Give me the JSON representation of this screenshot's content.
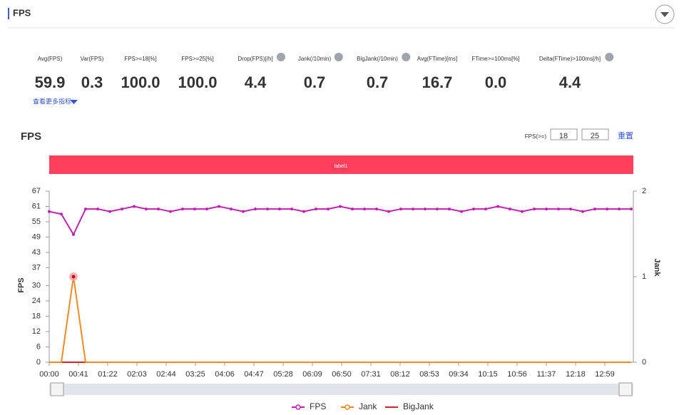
{
  "header": {
    "title": "FPS"
  },
  "metrics": [
    {
      "label": "Avg(FPS)",
      "value": "59.9"
    },
    {
      "label": "Var(FPS)",
      "value": "0.3"
    },
    {
      "label": "FPS>=18[%]",
      "value": "100.0"
    },
    {
      "label": "FPS>=25[%]",
      "value": "100.0"
    },
    {
      "label": "Drop(FPS)[/h]",
      "value": "4.4"
    },
    {
      "label": "Jank(/10min)",
      "value": "0.7"
    },
    {
      "label": "BigJank(/10min)",
      "value": "0.7"
    },
    {
      "label": "Avg(FTime)[ms]",
      "value": "16.7"
    },
    {
      "label": "FTime>=100ms[%]",
      "value": "0.0"
    },
    {
      "label": "Delta(FTime)>100ms[/h]",
      "value": "4.4"
    }
  ],
  "more_link": "查看更多指标",
  "controls": {
    "threshold_label": "FPS(>=)",
    "threshold_values": [
      "18",
      "25"
    ],
    "reset": "重置"
  },
  "chart_data": {
    "type": "line",
    "title": "FPS",
    "band_label": "label1",
    "ylabel": "FPS",
    "y2label": "Jank",
    "x": [
      0,
      17,
      34,
      51,
      68,
      85,
      102,
      119,
      136,
      153,
      170,
      187,
      204,
      221,
      238,
      255,
      272,
      289,
      306,
      323,
      340,
      357,
      374,
      391,
      408,
      425,
      442,
      459,
      476,
      493,
      510,
      527,
      544,
      561,
      578,
      595,
      612,
      629,
      646,
      663,
      680,
      697,
      714,
      731,
      748,
      765,
      782,
      799,
      816
    ],
    "xlim": [
      0,
      819
    ],
    "xticks": [
      {
        "value": 0,
        "label": "00:00"
      },
      {
        "value": 41,
        "label": "00:41"
      },
      {
        "value": 82,
        "label": "01:22"
      },
      {
        "value": 123,
        "label": "02:03"
      },
      {
        "value": 164,
        "label": "02:44"
      },
      {
        "value": 205,
        "label": "03:25"
      },
      {
        "value": 246,
        "label": "04:06"
      },
      {
        "value": 287,
        "label": "04:47"
      },
      {
        "value": 328,
        "label": "05:28"
      },
      {
        "value": 369,
        "label": "06:09"
      },
      {
        "value": 410,
        "label": "06:50"
      },
      {
        "value": 451,
        "label": "07:31"
      },
      {
        "value": 492,
        "label": "08:12"
      },
      {
        "value": 533,
        "label": "08:53"
      },
      {
        "value": 574,
        "label": "09:34"
      },
      {
        "value": 615,
        "label": "10:15"
      },
      {
        "value": 656,
        "label": "10:56"
      },
      {
        "value": 697,
        "label": "11:37"
      },
      {
        "value": 738,
        "label": "12:18"
      },
      {
        "value": 779,
        "label": "12:59"
      }
    ],
    "ylim": [
      0,
      67
    ],
    "yticks": [
      0,
      6,
      12,
      18,
      24,
      30,
      37,
      43,
      49,
      55,
      61,
      67
    ],
    "y2lim": [
      0,
      2
    ],
    "y2ticks": [
      0,
      1,
      2
    ],
    "series": [
      {
        "name": "FPS",
        "color": "#c41fb4",
        "values": [
          59,
          58,
          50,
          60,
          60,
          59,
          60,
          61,
          60,
          60,
          59,
          60,
          60,
          60,
          61,
          60,
          59,
          60,
          60,
          60,
          60,
          59,
          60,
          60,
          61,
          60,
          60,
          60,
          59,
          60,
          60,
          60,
          60,
          60,
          59,
          60,
          60,
          61,
          60,
          59,
          60,
          60,
          60,
          60,
          59,
          60,
          60,
          60,
          60
        ]
      },
      {
        "name": "Jank",
        "color": "#f08a24",
        "axis": "y2",
        "values": [
          0,
          0,
          1,
          0,
          0,
          0,
          0,
          0,
          0,
          0,
          0,
          0,
          0,
          0,
          0,
          0,
          0,
          0,
          0,
          0,
          0,
          0,
          0,
          0,
          0,
          0,
          0,
          0,
          0,
          0,
          0,
          0,
          0,
          0,
          0,
          0,
          0,
          0,
          0,
          0,
          0,
          0,
          0,
          0,
          0,
          0,
          0,
          0,
          0
        ]
      },
      {
        "name": "BigJank",
        "color": "#d9202c",
        "axis": "y2",
        "values": [
          0,
          0,
          0,
          0,
          0,
          0,
          0,
          0,
          0,
          0,
          0,
          0,
          0,
          0,
          0,
          0,
          0,
          0,
          0,
          0,
          0,
          0,
          0,
          0,
          0,
          0,
          0,
          0,
          0,
          0,
          0,
          0,
          0,
          0,
          0,
          0,
          0,
          0,
          0,
          0,
          0,
          0,
          0,
          0,
          0,
          0,
          0,
          0,
          0
        ]
      }
    ]
  }
}
